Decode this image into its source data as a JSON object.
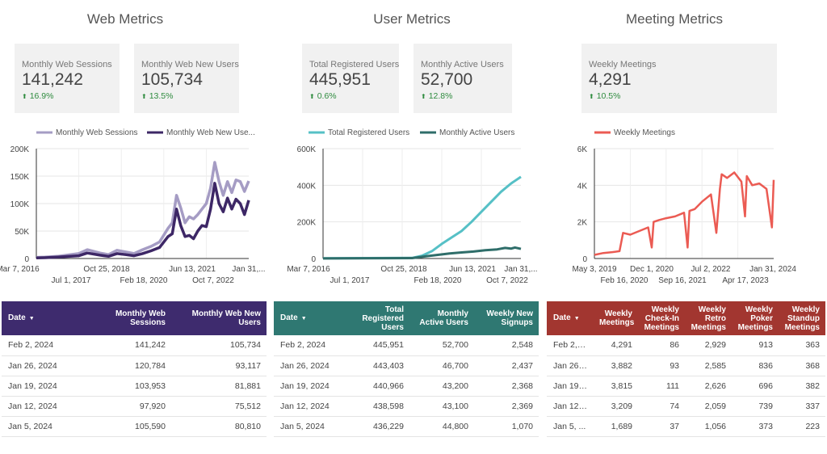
{
  "sections": [
    {
      "title": "Web Metrics"
    },
    {
      "title": "User Metrics"
    },
    {
      "title": "Meeting Metrics"
    }
  ],
  "cards": [
    {
      "label": "Monthly Web Sessions",
      "value": "141,242",
      "delta": "16.9%"
    },
    {
      "label": "Monthly Web New Users",
      "value": "105,734",
      "delta": "13.5%"
    },
    {
      "label": "Total Registered Users",
      "value": "445,951",
      "delta": "0.6%"
    },
    {
      "label": "Monthly Active Users",
      "value": "52,700",
      "delta": "12.8%"
    },
    {
      "label": "Weekly Meetings",
      "value": "4,291",
      "delta": "10.5%"
    }
  ],
  "delta_arrow": "⬆",
  "colors": {
    "delta_up": "#2e8b3e",
    "web_sessions": "#a59cc4",
    "web_new_users": "#3d2766",
    "registered": "#56c0c6",
    "active": "#2f6e6a",
    "meetings": "#eb5b53",
    "web_header": "#3e2b6e",
    "user_header": "#2f7872",
    "meeting_header": "#a23630"
  },
  "chart_data": [
    {
      "type": "line",
      "legend": [
        "Monthly Web Sessions",
        "Monthly Web New Use..."
      ],
      "x_ticks_row1": [
        "Mar 7, 2016",
        "Oct 25, 2018",
        "Jun 13, 2021",
        "Jan 31,..."
      ],
      "x_ticks_row2": [
        "Jul 1, 2017",
        "Feb 18, 2020",
        "Oct 7, 2022"
      ],
      "y_ticks": [
        "0",
        "50K",
        "100K",
        "150K",
        "200K"
      ],
      "ylim": [
        0,
        200000
      ],
      "series": [
        {
          "name": "Monthly Web Sessions",
          "x": [
            0,
            0.04,
            0.1,
            0.16,
            0.2,
            0.24,
            0.3,
            0.34,
            0.38,
            0.42,
            0.46,
            0.5,
            0.54,
            0.58,
            0.62,
            0.64,
            0.66,
            0.68,
            0.7,
            0.72,
            0.74,
            0.76,
            0.78,
            0.8,
            0.82,
            0.84,
            0.86,
            0.88,
            0.9,
            0.92,
            0.94,
            0.96,
            0.98,
            1.0
          ],
          "values": [
            2000,
            2500,
            4000,
            7000,
            9000,
            16000,
            10000,
            7000,
            15000,
            12000,
            9000,
            16000,
            22000,
            30000,
            55000,
            65000,
            115000,
            92000,
            65000,
            76000,
            72000,
            80000,
            90000,
            100000,
            128000,
            175000,
            140000,
            115000,
            140000,
            120000,
            143000,
            140000,
            122000,
            141000
          ]
        },
        {
          "name": "Monthly Web New Users",
          "x": [
            0,
            0.04,
            0.1,
            0.16,
            0.2,
            0.24,
            0.3,
            0.34,
            0.38,
            0.42,
            0.46,
            0.5,
            0.54,
            0.58,
            0.62,
            0.64,
            0.66,
            0.68,
            0.7,
            0.72,
            0.74,
            0.76,
            0.78,
            0.8,
            0.82,
            0.84,
            0.86,
            0.88,
            0.9,
            0.92,
            0.94,
            0.96,
            0.98,
            1.0
          ],
          "values": [
            1000,
            1500,
            2500,
            4000,
            5000,
            10000,
            6000,
            4000,
            9000,
            7000,
            5000,
            9000,
            14000,
            20000,
            40000,
            45000,
            90000,
            60000,
            40000,
            42000,
            36000,
            50000,
            60000,
            58000,
            90000,
            137000,
            100000,
            85000,
            110000,
            90000,
            108000,
            100000,
            80000,
            106000
          ]
        }
      ]
    },
    {
      "type": "line",
      "legend": [
        "Total Registered Users",
        "Monthly Active Users"
      ],
      "x_ticks_row1": [
        "Mar 7, 2016",
        "Oct 25, 2018",
        "Jun 13, 2021",
        "Jan 31,..."
      ],
      "x_ticks_row2": [
        "Jul 1, 2017",
        "Feb 18, 2020",
        "Oct 7, 2022"
      ],
      "y_ticks": [
        "0",
        "200K",
        "400K",
        "600K"
      ],
      "ylim": [
        0,
        600000
      ],
      "series": [
        {
          "name": "Total Registered Users",
          "x": [
            0.0,
            0.45,
            0.5,
            0.55,
            0.6,
            0.65,
            0.7,
            0.75,
            0.8,
            0.85,
            0.9,
            0.95,
            1.0
          ],
          "values": [
            1000,
            3000,
            15000,
            40000,
            80000,
            115000,
            150000,
            200000,
            255000,
            310000,
            365000,
            410000,
            446000
          ]
        },
        {
          "name": "Monthly Active Users",
          "x": [
            0.0,
            0.45,
            0.52,
            0.58,
            0.64,
            0.7,
            0.76,
            0.82,
            0.88,
            0.92,
            0.95,
            0.97,
            1.0
          ],
          "values": [
            500,
            2000,
            12000,
            20000,
            28000,
            33000,
            38000,
            45000,
            50000,
            58000,
            54000,
            60000,
            52700
          ]
        }
      ]
    },
    {
      "type": "line",
      "legend": [
        "Weekly Meetings"
      ],
      "x_ticks_row1": [
        "May 3, 2019",
        "Dec 1, 2020",
        "Jul 2, 2022",
        "Jan 31, 2024"
      ],
      "x_ticks_row2": [
        "Feb 16, 2020",
        "Sep 16, 2021",
        "Apr 17, 2023"
      ],
      "y_ticks": [
        "0",
        "2K",
        "4K",
        "6K"
      ],
      "ylim": [
        0,
        6000
      ],
      "series": [
        {
          "name": "Weekly Meetings",
          "x": [
            0.0,
            0.05,
            0.1,
            0.14,
            0.16,
            0.2,
            0.25,
            0.3,
            0.32,
            0.33,
            0.36,
            0.4,
            0.45,
            0.5,
            0.52,
            0.53,
            0.56,
            0.6,
            0.65,
            0.68,
            0.7,
            0.71,
            0.74,
            0.78,
            0.82,
            0.84,
            0.85,
            0.88,
            0.92,
            0.96,
            0.99,
            1.0
          ],
          "values": [
            200,
            300,
            350,
            400,
            1400,
            1300,
            1500,
            1700,
            600,
            2000,
            2100,
            2200,
            2300,
            2500,
            600,
            2600,
            2700,
            3100,
            3500,
            1400,
            3800,
            4600,
            4400,
            4700,
            4200,
            2300,
            4500,
            4000,
            4100,
            3800,
            1700,
            4291
          ]
        }
      ]
    }
  ],
  "tables": [
    {
      "columns": [
        "Date",
        "Monthly Web Sessions",
        "Monthly Web New Users"
      ],
      "rows": [
        [
          "Feb 2, 2024",
          "141,242",
          "105,734"
        ],
        [
          "Jan 26, 2024",
          "120,784",
          "93,117"
        ],
        [
          "Jan 19, 2024",
          "103,953",
          "81,881"
        ],
        [
          "Jan 12, 2024",
          "97,920",
          "75,512"
        ],
        [
          "Jan 5, 2024",
          "105,590",
          "80,810"
        ]
      ]
    },
    {
      "columns": [
        "Date",
        "Total Registered Users",
        "Monthly Active Users",
        "Weekly New Signups"
      ],
      "rows": [
        [
          "Feb 2, 2024",
          "445,951",
          "52,700",
          "2,548"
        ],
        [
          "Jan 26, 2024",
          "443,403",
          "46,700",
          "2,437"
        ],
        [
          "Jan 19, 2024",
          "440,966",
          "43,200",
          "2,368"
        ],
        [
          "Jan 12, 2024",
          "438,598",
          "43,100",
          "2,369"
        ],
        [
          "Jan 5, 2024",
          "436,229",
          "44,800",
          "1,070"
        ]
      ]
    },
    {
      "columns": [
        "Date",
        "Weekly Meetings",
        "Weekly Check-In Meetings",
        "Weekly Retro Meetings",
        "Weekly Poker Meetings",
        "Weekly Standup Meetings"
      ],
      "rows": [
        [
          "Feb 2, 2...",
          "4,291",
          "86",
          "2,929",
          "913",
          "363"
        ],
        [
          "Jan 26,...",
          "3,882",
          "93",
          "2,585",
          "836",
          "368"
        ],
        [
          "Jan 19,...",
          "3,815",
          "111",
          "2,626",
          "696",
          "382"
        ],
        [
          "Jan 12,...",
          "3,209",
          "74",
          "2,059",
          "739",
          "337"
        ],
        [
          "Jan 5, ...",
          "1,689",
          "37",
          "1,056",
          "373",
          "223"
        ]
      ]
    }
  ],
  "sort_icon": "▼"
}
